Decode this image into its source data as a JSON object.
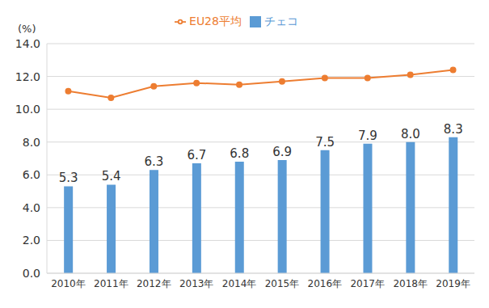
{
  "chart_data": {
    "type": "bar",
    "y_label": "(%)",
    "categories": [
      "2010年",
      "2011年",
      "2012年",
      "2013年",
      "2014年",
      "2015年",
      "2016年",
      "2017年",
      "2018年",
      "2019年"
    ],
    "series": [
      {
        "name": "チェコ",
        "type": "bar",
        "color": "#5b9bd5",
        "values": [
          5.3,
          5.4,
          6.3,
          6.7,
          6.8,
          6.9,
          7.5,
          7.9,
          8.0,
          8.3
        ],
        "value_labels": [
          "5.3",
          "5.4",
          "6.3",
          "6.7",
          "6.8",
          "6.9",
          "7.5",
          "7.9",
          "8.0",
          "8.3"
        ],
        "data_labels": true
      },
      {
        "name": "EU28平均",
        "type": "line",
        "color": "#ed7d31",
        "marker": "circle",
        "values": [
          11.1,
          10.7,
          11.4,
          11.6,
          11.5,
          11.7,
          11.9,
          11.9,
          12.1,
          12.4
        ]
      }
    ],
    "ylim": [
      0,
      14
    ],
    "yticks": [
      {
        "value": 0,
        "label": "0.0"
      },
      {
        "value": 2,
        "label": "2.0"
      },
      {
        "value": 4,
        "label": "4.0"
      },
      {
        "value": 6,
        "label": "6.0"
      },
      {
        "value": 8,
        "label": "8.0"
      },
      {
        "value": 10,
        "label": "10.0"
      },
      {
        "value": 12,
        "label": "12.0"
      },
      {
        "value": 14,
        "label": "14.0"
      }
    ],
    "grid": true,
    "legend": "top"
  }
}
